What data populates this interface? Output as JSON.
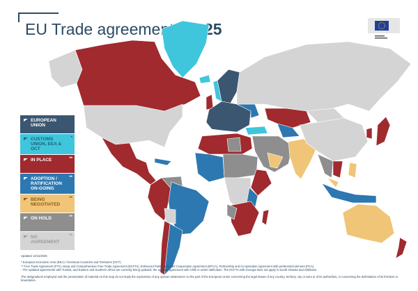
{
  "title": {
    "main": "EU Trade agreements",
    "year": "2025"
  },
  "logo": {
    "text": "European Commission"
  },
  "legend": [
    {
      "label": "European Union",
      "marker": "",
      "color": "#3b5670",
      "text_color": "#ffffff"
    },
    {
      "label": "Customs Union, EEA & OCT",
      "marker": "*",
      "color": "#3fc6dc",
      "text_color": "#1d5f78"
    },
    {
      "label": "In Place",
      "marker": "**",
      "color": "#a02a2e",
      "text_color": "#ffffff"
    },
    {
      "label": "Adoption / Ratification On-going",
      "marker": "**",
      "color": "#2d78b0",
      "text_color": "#ffffff"
    },
    {
      "label": "Being Negotiated",
      "marker": "**",
      "color": "#f0c577",
      "text_color": "#8a5a1a"
    },
    {
      "label": "On Hold",
      "marker": "**",
      "color": "#8e8e8e",
      "text_color": "#ffffff"
    },
    {
      "label": "No Agreement",
      "marker": "**",
      "color": "#d4d4d4",
      "text_color": "#9a9a9a"
    }
  ],
  "footer": {
    "updated": "Updated 14/11/2025",
    "notes": [
      "* European Economic Area (EEA) / Overseas Countries and Territories (OCT).",
      "** Free Trade Agreement (FTA), Deep and Comprehensive Free Trade Agreement (DCFTA), Enhanced Partnership and Cooperation Agreement (EPCA), Partnership and Co-operation Agreement with preferential element (PCA).",
      "- The updated agreements with Tunisia, and Eastern and Southern Africa are currently being updated; the updated agreement with Chile is under ratification. The DCFTA with Georgia does not apply in South Ossetia and Abkhazia."
    ],
    "disclaimer": "The designations employed and the presentation of material on this map do not imply the expression of any opinion whatsoever on the part of the European Union concerning the legal status of any country, territory, city or area or of its authorities, or concerning the delimitation of its frontiers or boundaries."
  }
}
